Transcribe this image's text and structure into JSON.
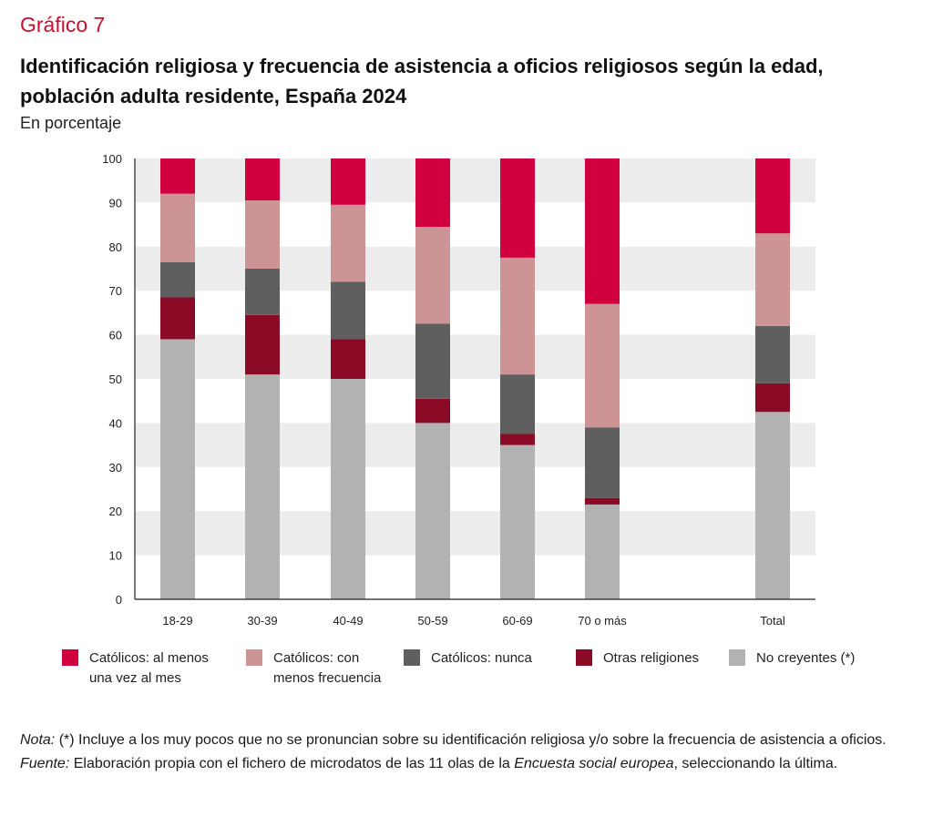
{
  "header": {
    "label": "Gráfico 7",
    "title": "Identificación religiosa y frecuencia de asistencia a oficios religiosos según la edad, población adulta residente, España 2024",
    "subtitle": "En porcentaje"
  },
  "chart_data": {
    "type": "bar",
    "stacked": true,
    "title": "Identificación religiosa y frecuencia de asistencia a oficios religiosos según la edad, población adulta residente, España 2024",
    "ylabel": "En porcentaje",
    "xlabel": "",
    "ylim": [
      0,
      100
    ],
    "yticks": [
      0,
      10,
      20,
      30,
      40,
      50,
      60,
      70,
      80,
      90,
      100
    ],
    "categories": [
      "18-29",
      "30-39",
      "40-49",
      "50-59",
      "60-69",
      "70 o más",
      "Total"
    ],
    "series": [
      {
        "name": "No creyentes (*)",
        "color": "#b2b2b2",
        "values": [
          59,
          51,
          50,
          40,
          35,
          21.5,
          42.5
        ]
      },
      {
        "name": "Otras religiones",
        "color": "#8b0a25",
        "values": [
          9.5,
          13.5,
          9,
          5.5,
          2.5,
          1.5,
          6.5
        ]
      },
      {
        "name": "Católicos: nunca",
        "color": "#5f5f5f",
        "values": [
          8,
          10.5,
          13,
          17,
          13.5,
          16,
          13
        ]
      },
      {
        "name": "Católicos: con menos frecuencia",
        "color": "#cc9494",
        "values": [
          15.5,
          15.5,
          17.5,
          22,
          26.5,
          28,
          21
        ]
      },
      {
        "name": "Católicos: al menos una vez al mes",
        "color": "#d0003f",
        "values": [
          8,
          9.5,
          10.5,
          15.5,
          22.5,
          33,
          17
        ]
      }
    ],
    "grid": "alternating horizontal bands"
  },
  "legend": [
    {
      "text": "Católicos: al menos una vez al mes",
      "color": "#d0003f"
    },
    {
      "text": "Católicos: con menos frecuencia",
      "color": "#cc9494"
    },
    {
      "text": "Católicos: nunca",
      "color": "#5f5f5f"
    },
    {
      "text": "Otras religiones",
      "color": "#8b0a25"
    },
    {
      "text": "No creyentes (*)",
      "color": "#b2b2b2"
    }
  ],
  "notes": {
    "nota_label": "Nota:",
    "nota_text": " (*) Incluye a los muy pocos que no se pronuncian sobre su identificación religiosa y/o sobre la frecuencia de asistencia a oficios.",
    "fuente_label": "Fuente:",
    "fuente_text_1": " Elaboración propia con el fichero de microdatos de las 11 olas de la ",
    "fuente_survey": "Encuesta social europea",
    "fuente_text_2": ", seleccionando la última."
  }
}
